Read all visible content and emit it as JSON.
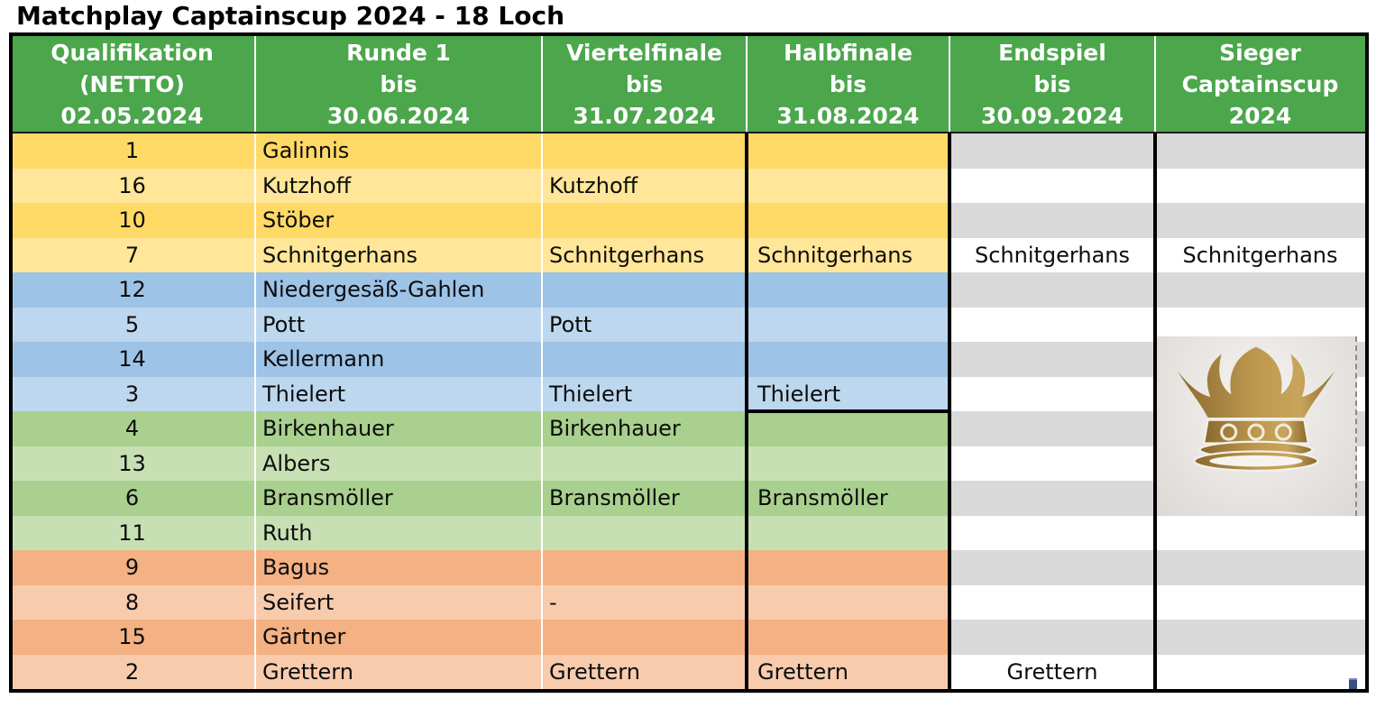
{
  "title": "Matchplay Captainscup 2024 - 18 Loch",
  "header": {
    "columns": [
      {
        "lines": [
          "Qualifikation",
          "(NETTO)",
          "02.05.2024"
        ]
      },
      {
        "lines": [
          "Runde 1",
          "bis",
          "30.06.2024"
        ]
      },
      {
        "lines": [
          "Viertelfinale",
          "bis",
          "31.07.2024"
        ]
      },
      {
        "lines": [
          "Halbfinale",
          "bis",
          "31.08.2024"
        ]
      },
      {
        "lines": [
          "Endspiel",
          "bis",
          "30.09.2024"
        ]
      },
      {
        "lines": [
          "Sieger",
          "Captainscup",
          "2024"
        ]
      }
    ]
  },
  "bracket": {
    "rows": [
      {
        "seed": "1",
        "runde1": "Galinnis",
        "viertelfinale": "",
        "halbfinale": "",
        "endspiel": "",
        "sieger": "",
        "group": "yellow",
        "shade": "dark"
      },
      {
        "seed": "16",
        "runde1": "Kutzhoff",
        "viertelfinale": "Kutzhoff",
        "halbfinale": "",
        "endspiel": "",
        "sieger": "",
        "group": "yellow",
        "shade": "light"
      },
      {
        "seed": "10",
        "runde1": "Stöber",
        "viertelfinale": "",
        "halbfinale": "",
        "endspiel": "",
        "sieger": "",
        "group": "yellow",
        "shade": "dark"
      },
      {
        "seed": "7",
        "runde1": "Schnitgerhans",
        "viertelfinale": "Schnitgerhans",
        "halbfinale": "Schnitgerhans",
        "endspiel": "Schnitgerhans",
        "sieger": "Schnitgerhans",
        "group": "yellow",
        "shade": "light"
      },
      {
        "seed": "12",
        "runde1": "Niedergesäß-Gahlen",
        "viertelfinale": "",
        "halbfinale": "",
        "endspiel": "",
        "sieger": "",
        "group": "blue",
        "shade": "dark"
      },
      {
        "seed": "5",
        "runde1": "Pott",
        "viertelfinale": "Pott",
        "halbfinale": "",
        "endspiel": "",
        "sieger": "",
        "group": "blue",
        "shade": "light"
      },
      {
        "seed": "14",
        "runde1": "Kellermann",
        "viertelfinale": "",
        "halbfinale": "",
        "endspiel": "",
        "sieger": "",
        "group": "blue",
        "shade": "dark"
      },
      {
        "seed": "3",
        "runde1": "Thielert",
        "viertelfinale": "Thielert",
        "halbfinale": "Thielert",
        "endspiel": "",
        "sieger": "",
        "group": "blue",
        "shade": "light"
      },
      {
        "seed": "4",
        "runde1": "Birkenhauer",
        "viertelfinale": "Birkenhauer",
        "halbfinale": "",
        "endspiel": "",
        "sieger": "",
        "group": "green",
        "shade": "dark"
      },
      {
        "seed": "13",
        "runde1": "Albers",
        "viertelfinale": "",
        "halbfinale": "",
        "endspiel": "",
        "sieger": "",
        "group": "green",
        "shade": "light"
      },
      {
        "seed": "6",
        "runde1": "Bransmöller",
        "viertelfinale": "Bransmöller",
        "halbfinale": "Bransmöller",
        "endspiel": "",
        "sieger": "",
        "group": "green",
        "shade": "dark"
      },
      {
        "seed": "11",
        "runde1": "Ruth",
        "viertelfinale": "",
        "halbfinale": "",
        "endspiel": "",
        "sieger": "",
        "group": "green",
        "shade": "light"
      },
      {
        "seed": "9",
        "runde1": "Bagus",
        "viertelfinale": "",
        "halbfinale": "",
        "endspiel": "",
        "sieger": "",
        "group": "orange",
        "shade": "dark"
      },
      {
        "seed": "8",
        "runde1": "Seifert",
        "viertelfinale": "-",
        "halbfinale": "",
        "endspiel": "",
        "sieger": "",
        "group": "orange",
        "shade": "light"
      },
      {
        "seed": "15",
        "runde1": "Gärtner",
        "viertelfinale": "",
        "halbfinale": "",
        "endspiel": "",
        "sieger": "",
        "group": "orange",
        "shade": "dark"
      },
      {
        "seed": "2",
        "runde1": "Grettern",
        "viertelfinale": "Grettern",
        "halbfinale": "Grettern",
        "endspiel": "Grettern",
        "sieger": "",
        "group": "orange",
        "shade": "light"
      }
    ]
  },
  "sieger_image": {
    "icon": "crown-icon"
  },
  "colors": {
    "header_bg": "#4BA64C",
    "header_text": "#FFFFFF",
    "yellow_dark": "#FFD966",
    "yellow_light": "#FFE699",
    "blue_dark": "#9DC3E6",
    "blue_light": "#BDD7EE",
    "green_dark": "#A9D08E",
    "green_light": "#C6E0B4",
    "orange_dark": "#F4B183",
    "orange_light": "#F8CBAD",
    "stripe_gray": "#D9D9D9",
    "stripe_white": "#FFFFFF",
    "border_black": "#000000",
    "crown_gold_dark": "#8A682C",
    "crown_gold_mid": "#BD9950",
    "crown_gold_light": "#C9A55C",
    "handle_blue": "#3A5080"
  }
}
